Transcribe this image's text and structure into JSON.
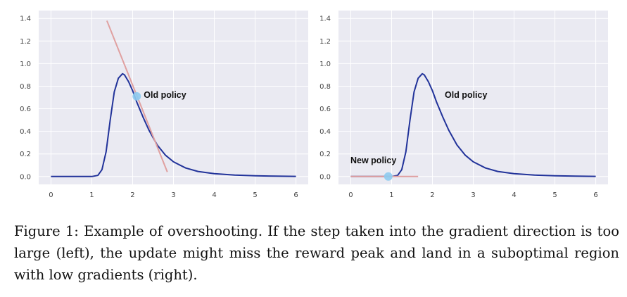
{
  "figure": {
    "caption_label": "Figure 1:",
    "caption_text": "Example of overshooting. If the step taken into the gradient direction is too large (left), the update might miss the reward peak and land in a suboptimal region with low gradients (right)."
  },
  "colors": {
    "background": "#eaeaf2",
    "grid": "#ffffff",
    "curve": "#22339a",
    "tangent": "#e0a0a0",
    "marker": "#8ecbef"
  },
  "chart_data": [
    {
      "type": "line",
      "panel": "left",
      "xlim": [
        -0.3,
        6.3
      ],
      "ylim": [
        -0.07,
        1.47
      ],
      "xticks": [
        0,
        1,
        2,
        3,
        4,
        5,
        6
      ],
      "yticks": [
        0.0,
        0.2,
        0.4,
        0.6,
        0.8,
        1.0,
        1.2,
        1.4
      ],
      "xtick_labels": [
        "0",
        "1",
        "2",
        "3",
        "4",
        "5",
        "6"
      ],
      "ytick_labels": [
        "0.0",
        "0.2",
        "0.4",
        "0.6",
        "0.8",
        "1.0",
        "1.2",
        "1.4"
      ],
      "grid": true,
      "series": [
        {
          "kind": "reward-curve",
          "x": [
            0.0,
            0.5,
            1.0,
            1.15,
            1.25,
            1.35,
            1.45,
            1.55,
            1.65,
            1.75,
            1.8,
            1.9,
            2.0,
            2.1,
            2.25,
            2.4,
            2.6,
            2.8,
            3.0,
            3.3,
            3.6,
            4.0,
            4.5,
            5.0,
            5.5,
            6.0
          ],
          "y": [
            0.0,
            0.0,
            0.0,
            0.01,
            0.06,
            0.22,
            0.5,
            0.75,
            0.87,
            0.91,
            0.9,
            0.84,
            0.76,
            0.66,
            0.53,
            0.41,
            0.28,
            0.19,
            0.13,
            0.075,
            0.045,
            0.025,
            0.012,
            0.006,
            0.003,
            0.001
          ]
        },
        {
          "kind": "tangent-line",
          "x": [
            1.37,
            2.85
          ],
          "y": [
            1.38,
            0.04
          ]
        }
      ],
      "points": [
        {
          "label": "Old policy",
          "x": 2.1,
          "y": 0.71
        }
      ],
      "annotations": [
        "Old policy"
      ]
    },
    {
      "type": "line",
      "panel": "right",
      "xlim": [
        -0.3,
        6.3
      ],
      "ylim": [
        -0.07,
        1.47
      ],
      "xticks": [
        0,
        1,
        2,
        3,
        4,
        5,
        6
      ],
      "yticks": [
        0.0,
        0.2,
        0.4,
        0.6,
        0.8,
        1.0,
        1.2,
        1.4
      ],
      "xtick_labels": [
        "0",
        "1",
        "2",
        "3",
        "4",
        "5",
        "6"
      ],
      "ytick_labels": [
        "0.0",
        "0.2",
        "0.4",
        "0.6",
        "0.8",
        "1.0",
        "1.2",
        "1.4"
      ],
      "grid": true,
      "series": [
        {
          "kind": "reward-curve",
          "x": [
            0.0,
            0.5,
            1.0,
            1.15,
            1.25,
            1.35,
            1.45,
            1.55,
            1.65,
            1.75,
            1.8,
            1.9,
            2.0,
            2.1,
            2.25,
            2.4,
            2.6,
            2.8,
            3.0,
            3.3,
            3.6,
            4.0,
            4.5,
            5.0,
            5.5,
            6.0
          ],
          "y": [
            0.0,
            0.0,
            0.0,
            0.01,
            0.06,
            0.22,
            0.5,
            0.75,
            0.87,
            0.91,
            0.9,
            0.84,
            0.76,
            0.66,
            0.53,
            0.41,
            0.28,
            0.19,
            0.13,
            0.075,
            0.045,
            0.025,
            0.012,
            0.006,
            0.003,
            0.001
          ]
        },
        {
          "kind": "tangent-line",
          "x": [
            0.0,
            1.65
          ],
          "y": [
            0.0,
            0.0
          ]
        }
      ],
      "points": [
        {
          "label": "New policy",
          "x": 0.92,
          "y": 0.0
        }
      ],
      "annotations": [
        "Old policy",
        "New policy"
      ]
    }
  ]
}
